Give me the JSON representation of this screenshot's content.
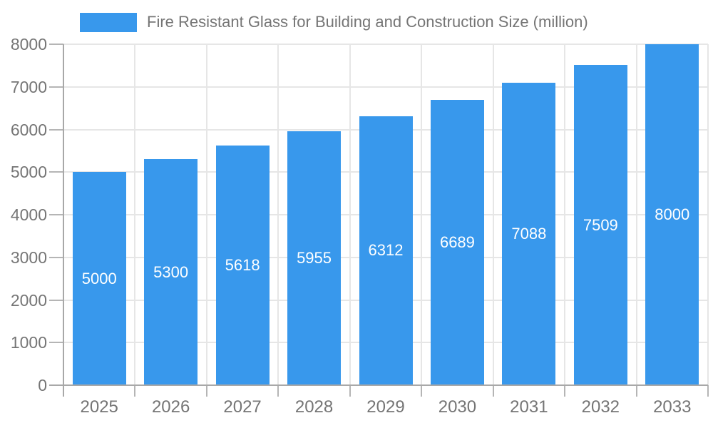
{
  "chart_data": {
    "type": "bar",
    "title": "Fire Resistant Glass for Building and Construction Size (million)",
    "categories": [
      "2025",
      "2026",
      "2027",
      "2028",
      "2029",
      "2030",
      "2031",
      "2032",
      "2033"
    ],
    "values": [
      5000,
      5300,
      5618,
      5955,
      6312,
      6689,
      7088,
      7509,
      8000
    ],
    "data_labels": [
      "5000",
      "5300",
      "5618",
      "5955",
      "6312",
      "6689",
      "7088",
      "7509",
      "8000"
    ],
    "xlabel": "",
    "ylabel": "",
    "ylim": [
      0,
      8000
    ],
    "ytick_step": 1000,
    "yticks": [
      0,
      1000,
      2000,
      3000,
      4000,
      5000,
      6000,
      7000,
      8000
    ],
    "grid": "horizontal gridlines at each ytick, vertical gridlines at category boundaries",
    "legend_position": "top-left",
    "legend_entries": [
      "Fire Resistant Glass for Building and Construction Size (million)"
    ]
  },
  "legend": {
    "label": "Fire Resistant Glass for Building and Construction Size (million)"
  },
  "colors": {
    "bar": "#3898EC",
    "bar_value_text": "#FFFFFF",
    "axis_text": "#757575",
    "legend_text": "#757575",
    "grid_line": "#E6E6E6",
    "axis_line": "#A8A8A8",
    "tick": "#B5B5B5",
    "background": "#FFFFFF"
  }
}
